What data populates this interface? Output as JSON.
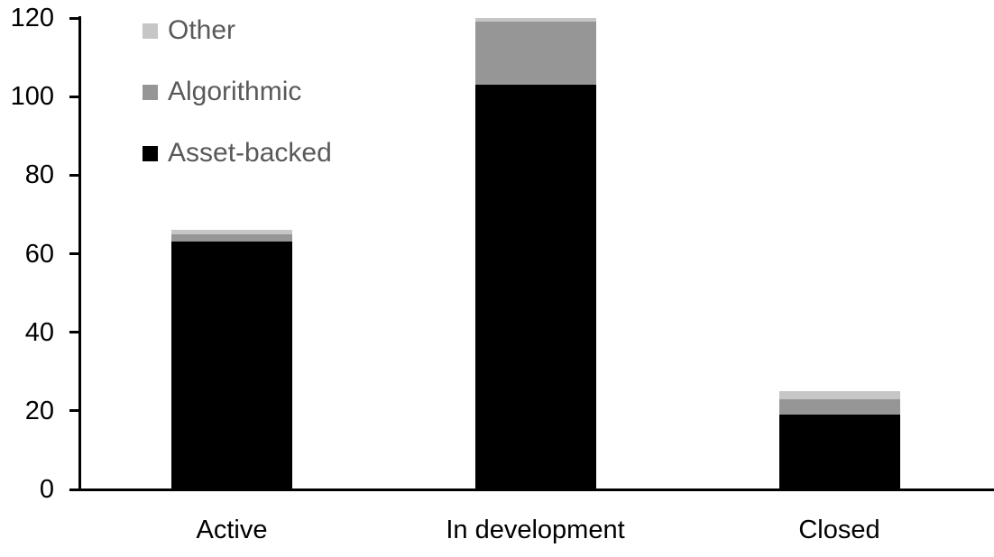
{
  "chart_data": {
    "type": "bar",
    "stacked": true,
    "title": "",
    "xlabel": "",
    "ylabel": "",
    "categories": [
      "Active",
      "In development",
      "Closed"
    ],
    "series": [
      {
        "name": "Asset-backed",
        "color": "#000000",
        "values": [
          63,
          103,
          19
        ]
      },
      {
        "name": "Algorithmic",
        "color": "#969696",
        "values": [
          2,
          16,
          4
        ]
      },
      {
        "name": "Other",
        "color": "#c6c6c6",
        "values": [
          1,
          1,
          2
        ]
      }
    ],
    "ylim": [
      0,
      120
    ],
    "y_ticks": [
      0,
      20,
      40,
      60,
      80,
      100,
      120
    ],
    "grid": false,
    "legend_position": "top-left"
  },
  "legend": {
    "items": [
      {
        "label": "Other",
        "color": "#c6c6c6"
      },
      {
        "label": "Algorithmic",
        "color": "#969696"
      },
      {
        "label": "Asset-backed",
        "color": "#000000"
      }
    ],
    "text_color": "#595959"
  },
  "axis": {
    "line_color": "#000000",
    "label_color": "#000000"
  }
}
